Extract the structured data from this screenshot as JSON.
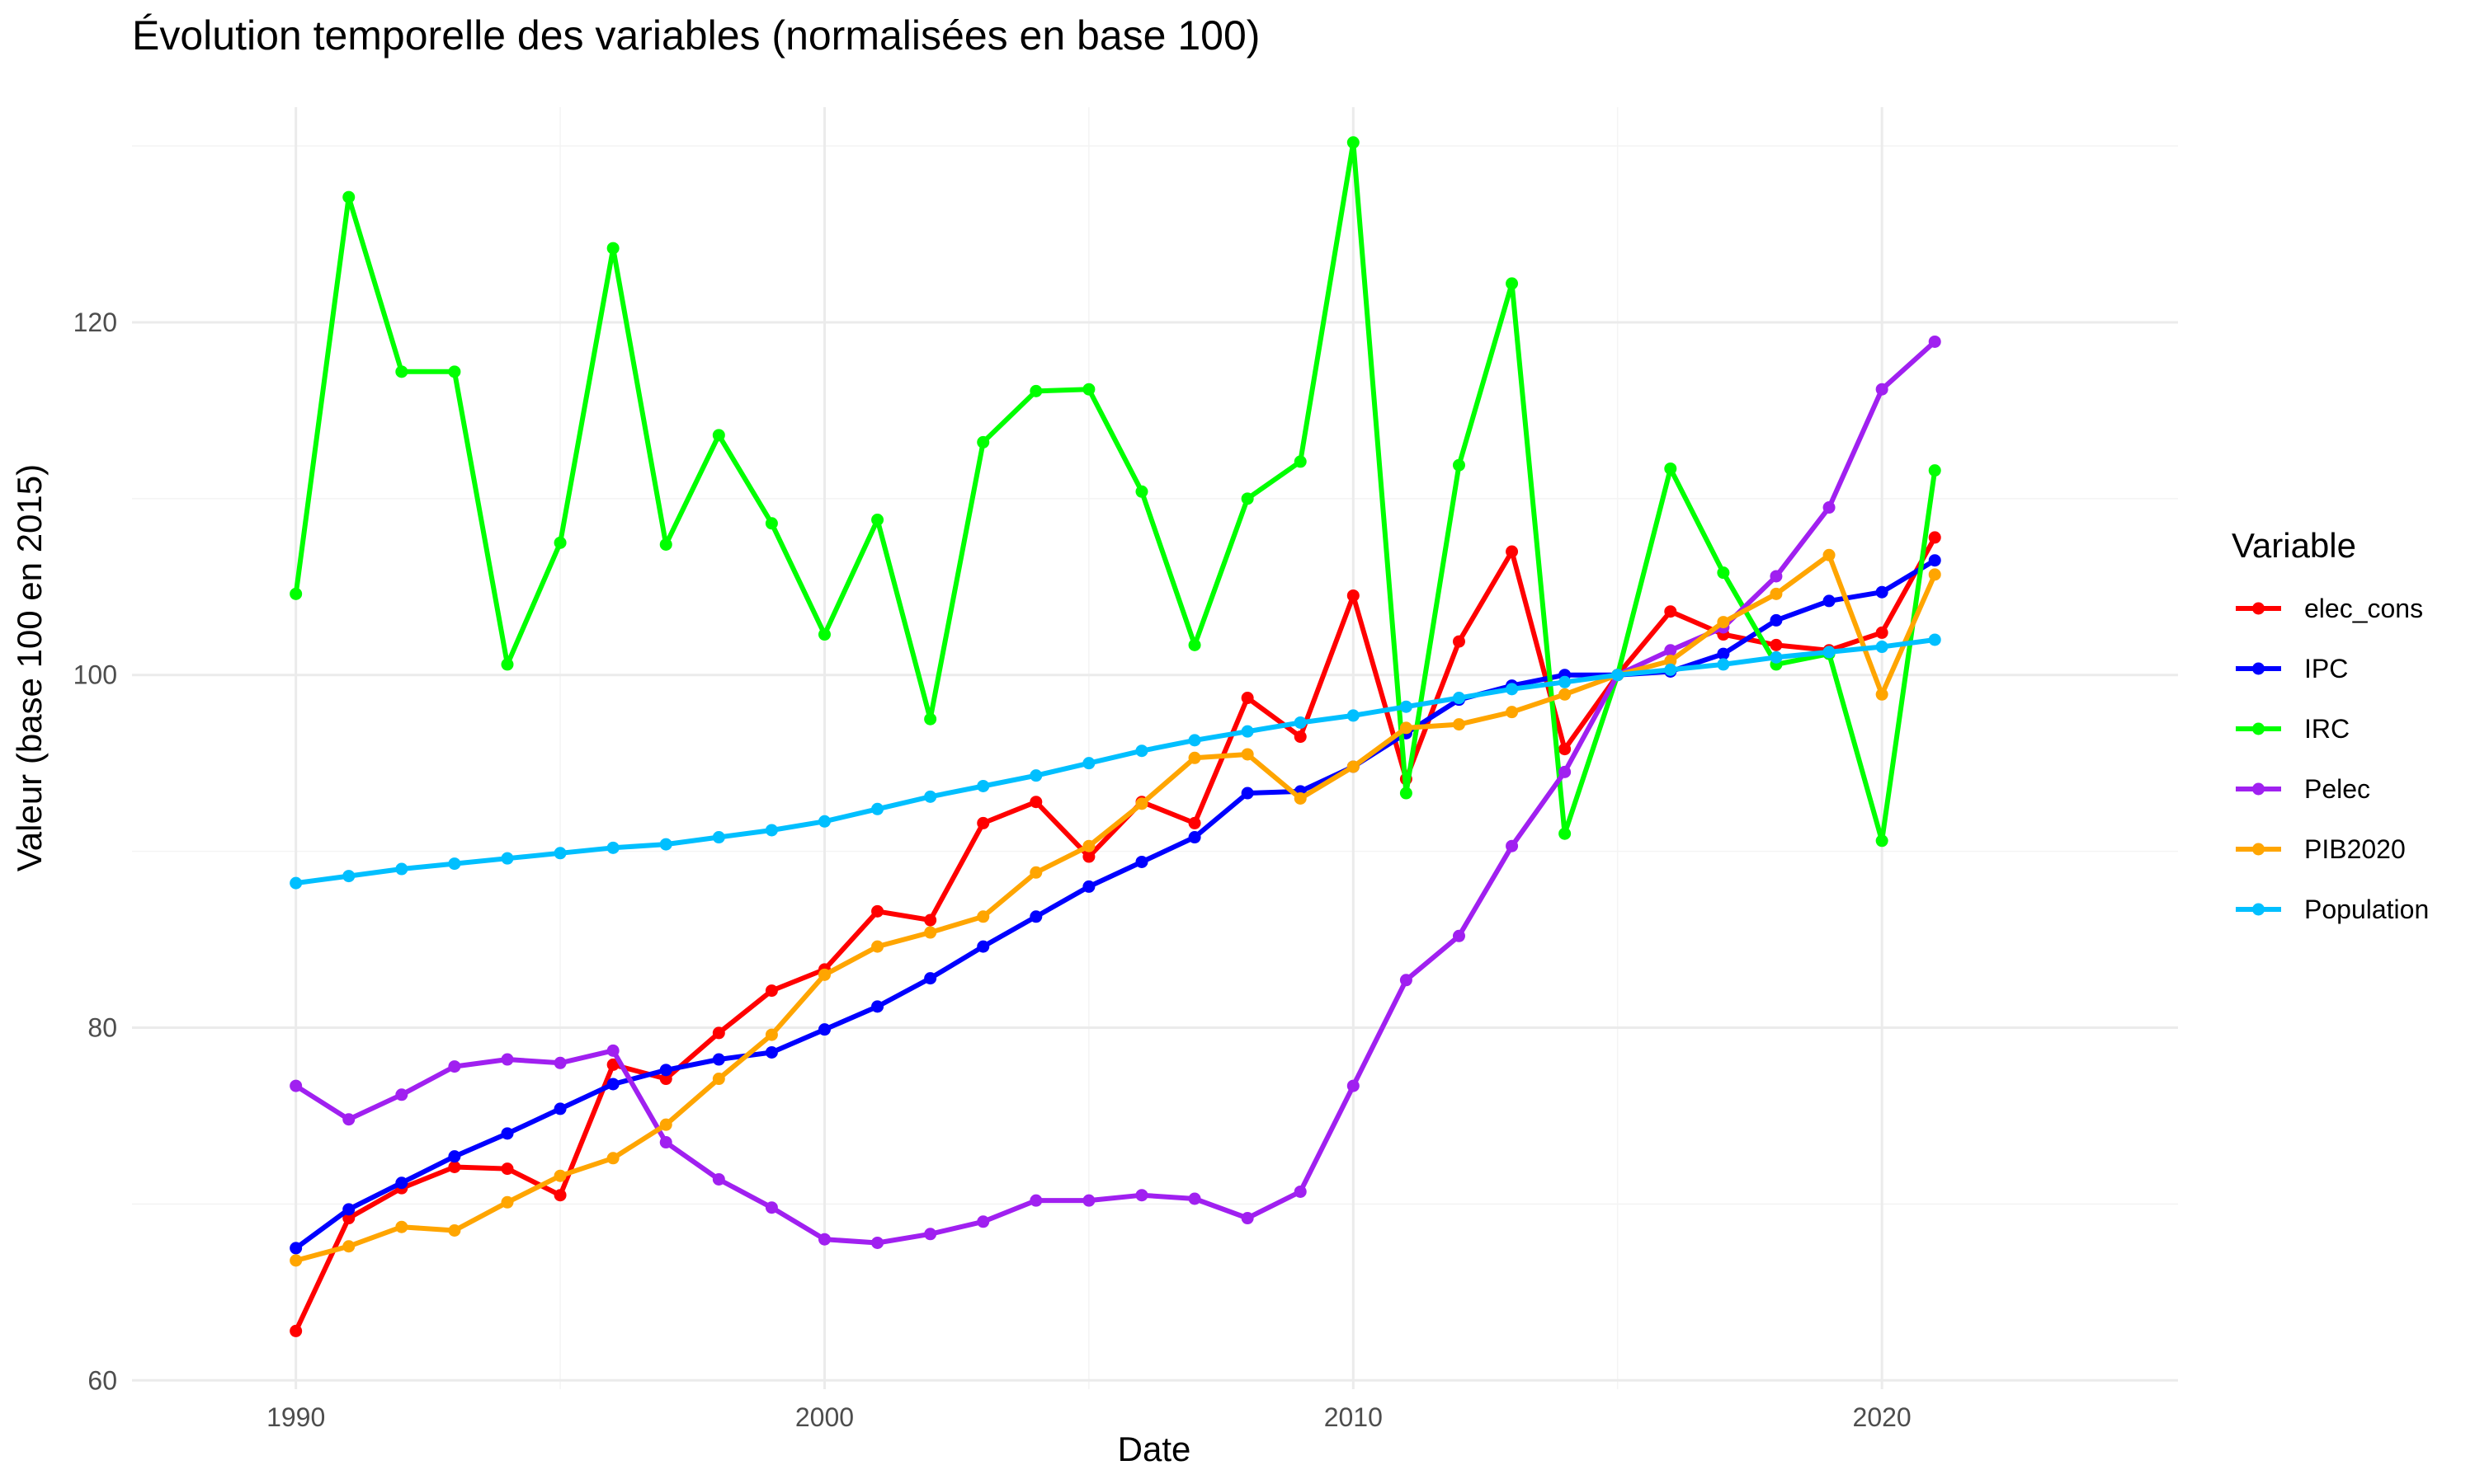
{
  "chart_data": {
    "type": "line",
    "title": "Évolution temporelle des variables (normalisées en base 100)",
    "xlabel": "Date",
    "ylabel": "Valeur (base 100 en 2015)",
    "x": [
      1990,
      1991,
      1992,
      1993,
      1994,
      1995,
      1996,
      1997,
      1998,
      1999,
      2000,
      2001,
      2002,
      2003,
      2004,
      2005,
      2006,
      2007,
      2008,
      2009,
      2010,
      2011,
      2012,
      2013,
      2014,
      2015,
      2016,
      2017,
      2018,
      2019,
      2020,
      2021
    ],
    "xlim": [
      1986.9,
      2025.6
    ],
    "ylim": [
      59.5,
      132.2
    ],
    "x_ticks": [
      1990,
      2000,
      2010,
      2020
    ],
    "x_tick_labels": [
      "1990",
      "2000",
      "2010",
      "2020"
    ],
    "x_minor_ticks": [
      1995,
      2005,
      2015
    ],
    "y_ticks": [
      60,
      80,
      100,
      120
    ],
    "y_tick_labels": [
      "60",
      "80",
      "100",
      "120"
    ],
    "y_minor_ticks": [
      70,
      90,
      110,
      130
    ],
    "grid": true,
    "legend": {
      "title": "Variable",
      "position": "right"
    },
    "series": [
      {
        "name": "elec_cons",
        "color": "#ff0000",
        "values": [
          62.8,
          69.2,
          70.9,
          72.1,
          72.0,
          70.5,
          77.9,
          77.1,
          79.7,
          82.1,
          83.3,
          86.6,
          86.1,
          91.6,
          92.8,
          89.7,
          92.8,
          91.6,
          98.7,
          96.5,
          104.5,
          94.1,
          101.9,
          107.0,
          95.8,
          100.0,
          103.6,
          102.3,
          101.7,
          101.4,
          102.4,
          107.8
        ]
      },
      {
        "name": "IPC",
        "color": "#0000ff",
        "values": [
          67.5,
          69.7,
          71.2,
          72.7,
          74.0,
          75.4,
          76.8,
          77.6,
          78.2,
          78.6,
          79.9,
          81.2,
          82.8,
          84.6,
          86.3,
          88.0,
          89.4,
          90.8,
          93.3,
          93.4,
          94.8,
          96.7,
          98.6,
          99.4,
          100.0,
          100.0,
          100.2,
          101.2,
          103.1,
          104.2,
          104.7,
          106.5
        ]
      },
      {
        "name": "IRC",
        "color": "#00ff00",
        "values": [
          104.6,
          127.1,
          117.2,
          117.2,
          100.6,
          107.5,
          124.2,
          107.4,
          113.6,
          108.6,
          102.3,
          108.8,
          97.5,
          113.2,
          116.1,
          116.2,
          110.4,
          101.7,
          110.0,
          112.1,
          130.2,
          93.3,
          111.9,
          122.2,
          91.0,
          100.0,
          111.7,
          105.8,
          100.6,
          101.2,
          90.6,
          111.6
        ]
      },
      {
        "name": "Pelec",
        "color": "#a020f0",
        "values": [
          76.7,
          74.8,
          76.2,
          77.8,
          78.2,
          78.0,
          78.7,
          73.5,
          71.4,
          69.8,
          68.0,
          67.8,
          68.3,
          69.0,
          70.2,
          70.2,
          70.5,
          70.3,
          69.2,
          70.7,
          76.7,
          82.7,
          85.2,
          90.3,
          94.5,
          100.0,
          101.4,
          102.7,
          105.6,
          109.5,
          116.2,
          118.9
        ]
      },
      {
        "name": "PIB2020",
        "color": "#ffa500",
        "values": [
          66.8,
          67.6,
          68.7,
          68.5,
          70.1,
          71.6,
          72.6,
          74.5,
          77.1,
          79.6,
          83.0,
          84.6,
          85.4,
          86.3,
          88.8,
          90.3,
          92.7,
          95.3,
          95.5,
          93.0,
          94.8,
          97.0,
          97.2,
          97.9,
          98.9,
          100.0,
          100.8,
          103.0,
          104.6,
          106.8,
          98.9,
          105.7
        ]
      },
      {
        "name": "Population",
        "color": "#00bfff",
        "values": [
          88.2,
          88.6,
          89.0,
          89.3,
          89.6,
          89.9,
          90.2,
          90.4,
          90.8,
          91.2,
          91.7,
          92.4,
          93.1,
          93.7,
          94.3,
          95.0,
          95.7,
          96.3,
          96.8,
          97.3,
          97.7,
          98.2,
          98.7,
          99.2,
          99.6,
          100.0,
          100.3,
          100.6,
          101.0,
          101.3,
          101.6,
          102.0
        ]
      }
    ]
  }
}
